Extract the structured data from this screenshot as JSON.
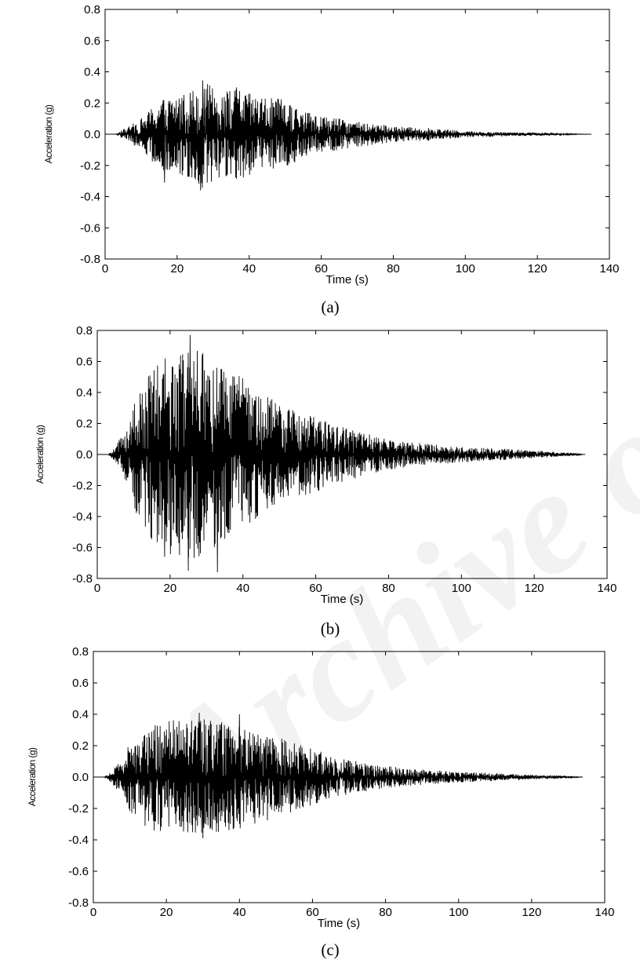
{
  "watermark": "Archive of SID",
  "chart_data": [
    {
      "type": "line",
      "caption": "(a)",
      "xlabel": "Time  (s)",
      "ylabel": "Acceleration (g)",
      "xlim": [
        0,
        140
      ],
      "ylim": [
        -0.8,
        0.8
      ],
      "xticks": [
        "0",
        "20",
        "40",
        "60",
        "80",
        "100",
        "120",
        "140"
      ],
      "yticks": [
        "0.8",
        "0.6",
        "0.4",
        "0.2",
        "0.0",
        "-0.2",
        "-0.4",
        "-0.6",
        "-0.8"
      ],
      "grid": false,
      "series": [
        {
          "t": [
            0,
            3,
            5,
            10,
            15,
            20,
            25,
            27,
            30,
            35,
            37,
            40,
            45,
            50,
            55,
            60,
            65,
            70,
            75,
            80,
            90,
            100,
            110,
            120,
            130,
            135
          ],
          "amplitude": [
            0,
            0,
            0.03,
            0.1,
            0.22,
            0.26,
            0.3,
            0.35,
            0.3,
            0.28,
            0.3,
            0.26,
            0.24,
            0.22,
            0.15,
            0.12,
            0.1,
            0.08,
            0.07,
            0.05,
            0.04,
            0.02,
            0.015,
            0.01,
            0.003,
            0
          ],
          "extremes": [
            {
              "t": 26.5,
              "value": -0.36
            },
            {
              "t": 27.5,
              "value": 0.29
            },
            {
              "t": 36.5,
              "value": 0.3
            },
            {
              "t": 16.5,
              "value": -0.31
            }
          ]
        }
      ]
    },
    {
      "type": "line",
      "caption": "(b)",
      "xlabel": "Time  (s)",
      "ylabel": "Acceleration (g)",
      "xlim": [
        0,
        140
      ],
      "ylim": [
        -0.8,
        0.8
      ],
      "xticks": [
        "0",
        "20",
        "40",
        "60",
        "80",
        "100",
        "120",
        "140"
      ],
      "yticks": [
        "0.8",
        "0.6",
        "0.4",
        "0.2",
        "0.0",
        "-0.2",
        "-0.4",
        "-0.6",
        "-0.8"
      ],
      "grid": false,
      "series": [
        {
          "t": [
            0,
            3,
            5,
            8,
            10,
            15,
            20,
            25,
            30,
            35,
            40,
            45,
            50,
            55,
            60,
            65,
            70,
            75,
            80,
            90,
            100,
            110,
            120,
            130,
            134
          ],
          "amplitude": [
            0,
            0,
            0.05,
            0.2,
            0.35,
            0.55,
            0.65,
            0.7,
            0.65,
            0.55,
            0.5,
            0.4,
            0.33,
            0.28,
            0.25,
            0.2,
            0.16,
            0.13,
            0.1,
            0.07,
            0.05,
            0.04,
            0.025,
            0.01,
            0
          ],
          "extremes": [
            {
              "t": 25.5,
              "value": 0.77
            },
            {
              "t": 25.0,
              "value": -0.75
            },
            {
              "t": 33.0,
              "value": -0.76
            },
            {
              "t": 18.5,
              "value": -0.66
            }
          ]
        }
      ]
    },
    {
      "type": "line",
      "caption": "(c)",
      "xlabel": "Time  (s)",
      "ylabel": "Acceleration (g)",
      "xlim": [
        0,
        140
      ],
      "ylim": [
        -0.8,
        0.8
      ],
      "xticks": [
        "0",
        "20",
        "40",
        "60",
        "80",
        "100",
        "120",
        "140"
      ],
      "yticks": [
        "0.8",
        "0.6",
        "0.4",
        "0.2",
        "0.0",
        "-0.2",
        "-0.4",
        "-0.6",
        "-0.8"
      ],
      "grid": false,
      "series": [
        {
          "t": [
            0,
            3,
            5,
            8,
            10,
            15,
            20,
            25,
            30,
            35,
            40,
            45,
            50,
            55,
            60,
            65,
            70,
            75,
            80,
            90,
            100,
            110,
            120,
            130,
            134
          ],
          "amplitude": [
            0,
            0,
            0.04,
            0.12,
            0.22,
            0.33,
            0.36,
            0.37,
            0.37,
            0.35,
            0.33,
            0.3,
            0.26,
            0.22,
            0.18,
            0.14,
            0.11,
            0.09,
            0.07,
            0.05,
            0.035,
            0.025,
            0.015,
            0.008,
            0
          ],
          "extremes": [
            {
              "t": 29.0,
              "value": 0.41
            },
            {
              "t": 30.0,
              "value": -0.39
            },
            {
              "t": 40.0,
              "value": 0.4
            }
          ]
        }
      ]
    }
  ]
}
